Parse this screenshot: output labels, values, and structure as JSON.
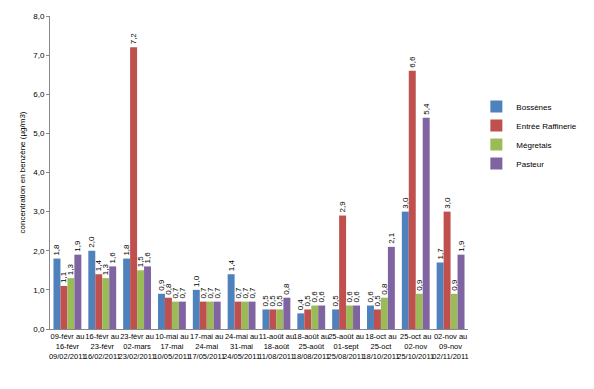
{
  "chart_data": {
    "type": "bar",
    "y_label": "concentration en benzène (µg/m3)",
    "categories": [
      "09-févr au 16-févr\n09/02/2011",
      "16-févr au 23-févr\n16/02/2011",
      "23-févr au 02-mars\n23/02/2011",
      "10-mai au 17-mai\n10/05/2011",
      "17-mai au 24-mai\n17/05/2011",
      "24-mai au 31-mai\n24/05/2011",
      "11-août au 18-août\n11/08/2011",
      "18-août au 25-août\n18/08/2011",
      "25-août au 01-sept\n25/08/2011",
      "18-oct au 25-oct\n18/10/2011",
      "25-oct au 02-nov\n25/10/2011",
      "02-nov au 09-nov\n02/11/2011"
    ],
    "series": [
      {
        "name": "Bossènes",
        "color": "#4f81bd",
        "values": [
          1.8,
          2.0,
          1.8,
          0.9,
          1.0,
          1.4,
          0.5,
          0.4,
          0.5,
          0.6,
          3.0,
          1.7
        ],
        "value_labels": [
          "1,8",
          "2,0",
          "1,8",
          "0,9",
          "1,0",
          "1,4",
          "0,5",
          "0,4",
          "0,5",
          "0,6",
          "3,0",
          "1,7"
        ]
      },
      {
        "name": "Entrée Raffinerie",
        "color": "#c0504d",
        "values": [
          1.1,
          1.4,
          7.2,
          0.8,
          0.7,
          0.7,
          0.5,
          0.5,
          2.9,
          0.5,
          6.6,
          3.0
        ],
        "value_labels": [
          "1,1",
          "1,4",
          "7,2",
          "0,8",
          "0,7",
          "0,7",
          "0,5",
          "0,5",
          "2,9",
          "0,5",
          "6,6",
          "3,0"
        ]
      },
      {
        "name": "Mégretais",
        "color": "#9bbb59",
        "values": [
          1.3,
          1.3,
          1.5,
          0.7,
          0.7,
          0.7,
          0.5,
          0.6,
          0.6,
          0.8,
          0.9,
          0.9
        ],
        "value_labels": [
          "1,3",
          "1,3",
          "1,5",
          "0,7",
          "0,7",
          "0,7",
          "0,5",
          "0,6",
          "0,6",
          "0,8",
          "0,9",
          "0,9"
        ]
      },
      {
        "name": "Pasteur",
        "color": "#8064a2",
        "values": [
          1.9,
          1.6,
          1.6,
          0.7,
          0.7,
          0.7,
          0.8,
          0.6,
          0.6,
          2.1,
          5.4,
          1.9
        ],
        "value_labels": [
          "1,9",
          "1,6",
          "1,6",
          "0,7",
          "0,7",
          "0,7",
          "0,8",
          "0,6",
          "0,6",
          "2,1",
          "5,4",
          "1,9"
        ]
      }
    ],
    "ylim": [
      0,
      8
    ],
    "yticks": [
      {
        "value": 0,
        "label": "0,0"
      },
      {
        "value": 1,
        "label": "1,0"
      },
      {
        "value": 2,
        "label": "2,0"
      },
      {
        "value": 3,
        "label": "3,0"
      },
      {
        "value": 4,
        "label": "4,0"
      },
      {
        "value": 5,
        "label": "5,0"
      },
      {
        "value": 6,
        "label": "6,0"
      },
      {
        "value": 7,
        "label": "7,0"
      },
      {
        "value": 8,
        "label": "8,0"
      }
    ],
    "grid": false,
    "legend": "right",
    "data_labels": true
  }
}
